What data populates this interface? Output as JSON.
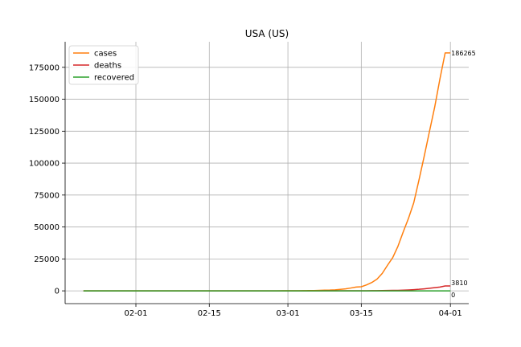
{
  "chart_data": {
    "type": "line",
    "title": "USA (US)",
    "xlabel": "",
    "ylabel": "",
    "x_start": "2020-01-22",
    "x": [
      "2020-01-22",
      "2020-01-23",
      "2020-01-24",
      "2020-01-25",
      "2020-01-26",
      "2020-01-27",
      "2020-01-28",
      "2020-01-29",
      "2020-01-30",
      "2020-01-31",
      "2020-02-01",
      "2020-02-02",
      "2020-02-03",
      "2020-02-04",
      "2020-02-05",
      "2020-02-06",
      "2020-02-07",
      "2020-02-08",
      "2020-02-09",
      "2020-02-10",
      "2020-02-11",
      "2020-02-12",
      "2020-02-13",
      "2020-02-14",
      "2020-02-15",
      "2020-02-16",
      "2020-02-17",
      "2020-02-18",
      "2020-02-19",
      "2020-02-20",
      "2020-02-21",
      "2020-02-22",
      "2020-02-23",
      "2020-02-24",
      "2020-02-25",
      "2020-02-26",
      "2020-02-27",
      "2020-02-28",
      "2020-02-29",
      "2020-03-01",
      "2020-03-02",
      "2020-03-03",
      "2020-03-04",
      "2020-03-05",
      "2020-03-06",
      "2020-03-07",
      "2020-03-08",
      "2020-03-09",
      "2020-03-10",
      "2020-03-11",
      "2020-03-12",
      "2020-03-13",
      "2020-03-14",
      "2020-03-15",
      "2020-03-16",
      "2020-03-17",
      "2020-03-18",
      "2020-03-19",
      "2020-03-20",
      "2020-03-21",
      "2020-03-22",
      "2020-03-23",
      "2020-03-24",
      "2020-03-25",
      "2020-03-26",
      "2020-03-27",
      "2020-03-28",
      "2020-03-29",
      "2020-03-30",
      "2020-03-31",
      "2020-04-01"
    ],
    "series": [
      {
        "name": "cases",
        "color": "#ff7f0e",
        "values": [
          1,
          1,
          2,
          2,
          5,
          5,
          5,
          5,
          5,
          6,
          8,
          8,
          11,
          11,
          11,
          12,
          12,
          12,
          12,
          12,
          13,
          13,
          14,
          14,
          14,
          14,
          14,
          14,
          14,
          14,
          16,
          16,
          16,
          16,
          16,
          16,
          17,
          17,
          25,
          32,
          55,
          74,
          107,
          184,
          237,
          403,
          519,
          594,
          782,
          1147,
          1586,
          2219,
          2978,
          3212,
          4679,
          6512,
          9169,
          13663,
          20030,
          26025,
          34944,
          46096,
          56714,
          68841,
          86662,
          105253,
          124633,
          143779,
          165861,
          186265,
          186265
        ]
      },
      {
        "name": "deaths",
        "color": "#d62728",
        "values": [
          0,
          0,
          0,
          0,
          0,
          0,
          0,
          0,
          0,
          0,
          0,
          0,
          0,
          0,
          0,
          0,
          0,
          0,
          0,
          0,
          0,
          0,
          0,
          0,
          0,
          0,
          0,
          0,
          0,
          0,
          0,
          0,
          0,
          0,
          0,
          0,
          0,
          0,
          1,
          1,
          6,
          7,
          11,
          12,
          14,
          17,
          21,
          22,
          28,
          36,
          40,
          47,
          54,
          63,
          85,
          108,
          150,
          206,
          267,
          341,
          406,
          534,
          708,
          942,
          1209,
          1581,
          2026,
          2467,
          2978,
          3810,
          3810
        ]
      },
      {
        "name": "recovered",
        "color": "#2ca02c",
        "values": [
          0,
          0,
          0,
          0,
          0,
          0,
          0,
          0,
          0,
          0,
          0,
          0,
          0,
          0,
          0,
          0,
          0,
          0,
          0,
          0,
          0,
          0,
          0,
          0,
          0,
          0,
          0,
          0,
          0,
          0,
          0,
          0,
          0,
          0,
          0,
          0,
          0,
          0,
          0,
          0,
          0,
          0,
          0,
          0,
          0,
          0,
          0,
          0,
          0,
          0,
          0,
          0,
          0,
          0,
          0,
          0,
          0,
          0,
          0,
          0,
          0,
          0,
          0,
          0,
          0,
          0,
          0,
          0,
          0,
          0,
          0
        ]
      }
    ],
    "ylim": [
      -10000,
      195000
    ],
    "yticks": [
      0,
      25000,
      50000,
      75000,
      100000,
      125000,
      150000,
      175000
    ],
    "ytick_labels": [
      "0",
      "25000",
      "50000",
      "75000",
      "100000",
      "125000",
      "150000",
      "175000"
    ],
    "xticks": [
      "2020-02-01",
      "2020-02-15",
      "2020-03-01",
      "2020-03-15",
      "2020-04-01"
    ],
    "xtick_labels": [
      "02-01",
      "02-15",
      "03-01",
      "03-15",
      "04-01"
    ],
    "end_labels": [
      "186265",
      "3810",
      "0"
    ],
    "grid": true,
    "legend_position": "top-left"
  }
}
